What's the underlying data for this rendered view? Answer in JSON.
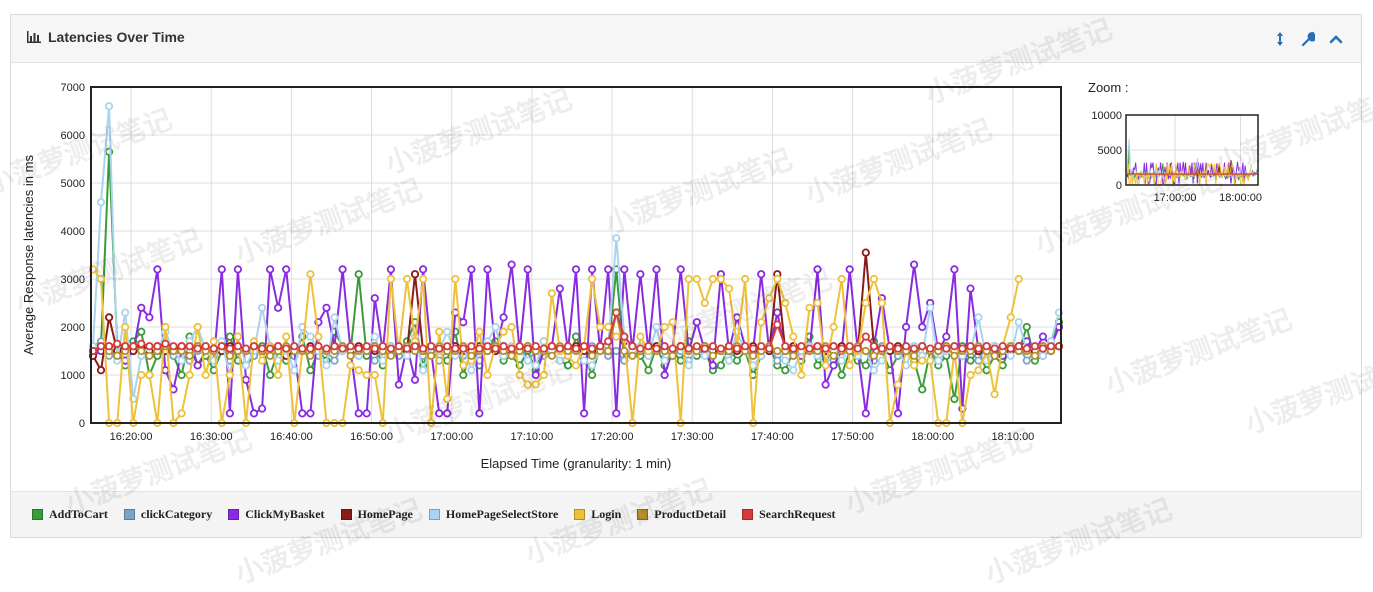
{
  "panel": {
    "title": "Latencies Over Time",
    "icons": [
      "bar-chart-icon",
      "resize-vertical-icon",
      "wrench-icon",
      "chevron-up-icon"
    ]
  },
  "zoom": {
    "label": "Zoom :"
  },
  "colors": {
    "AddToCart": "#3a9b3a",
    "clickCategory": "#7ba4c8",
    "ClickMyBasket": "#8a2be2",
    "HomePage": "#8b1a1a",
    "HomePageSelectStore": "#a8d4f0",
    "Login": "#efc13a",
    "ProductDetail": "#b8902a",
    "SearchRequest": "#d63b3b"
  },
  "watermark": "小菠萝测试笔记",
  "chart_data": [
    {
      "type": "line",
      "xlabel": "Elapsed Time (granularity: 1 min)",
      "ylabel": "Average Response latencies in ms",
      "ylim": [
        0,
        7000
      ],
      "yticks": [
        0,
        1000,
        2000,
        3000,
        4000,
        5000,
        6000,
        7000
      ],
      "xlim": [
        "16:15:00",
        "18:16:00"
      ],
      "xticks": [
        "16:20:00",
        "16:30:00",
        "16:40:00",
        "16:50:00",
        "17:00:00",
        "17:10:00",
        "17:20:00",
        "17:30:00",
        "17:40:00",
        "17:50:00",
        "18:00:00",
        "18:10:00"
      ],
      "grid": true,
      "legend": "bottom",
      "series": [
        {
          "name": "AddToCart",
          "values": [
            1500,
            1600,
            5650,
            1600,
            1200,
            1700,
            1900,
            1000,
            1400,
            1500,
            1400,
            1000,
            1800,
            1200,
            1400,
            1100,
            1500,
            1800,
            1300,
            1200,
            1400,
            1600,
            1000,
            1500,
            1300,
            1400,
            1800,
            1100,
            1500,
            1300,
            1900,
            1600,
            1500,
            3100,
            1400,
            1600,
            1200,
            1500,
            1400,
            1700,
            2100,
            1200,
            1600,
            1400,
            1300,
            1900,
            1000,
            1500,
            1200,
            1600,
            1700,
            1300,
            1400,
            1200,
            1500,
            1100,
            1700,
            1500,
            1300,
            1200,
            1800,
            1400,
            1000,
            1600,
            1500,
            3200,
            1300,
            1500,
            1400,
            1100,
            1600,
            1200,
            1500,
            1300,
            1700,
            1400,
            1500,
            1100,
            1200,
            1600,
            1300,
            1500,
            1000,
            1400,
            1600,
            1200,
            1100,
            1500,
            1300,
            1800,
            1200,
            1400,
            1600,
            1000,
            1500,
            1300,
            1200,
            1700,
            1500,
            1100,
            1400,
            1600,
            1300,
            700,
            1500,
            1200,
            1400,
            500,
            1600,
            1300,
            1500,
            1100,
            1400,
            1200,
            1600,
            1500,
            2000,
            1300,
            1400,
            1700,
            2100
          ]
        },
        {
          "name": "clickCategory",
          "values": [
            1600,
            1700,
            1400,
            1500,
            1300,
            1600,
            1500,
            1400,
            1500,
            1600,
            1400,
            1500,
            1300,
            1500,
            1600,
            1400,
            1500,
            1300,
            1600,
            1500,
            1400,
            1500,
            1600,
            1300,
            1500,
            1400,
            1500,
            1600,
            1400,
            1500,
            1300,
            1600,
            1500,
            1400,
            1500,
            1300,
            1600,
            1500,
            1400,
            1500,
            1600,
            1400,
            1500,
            1300,
            1500,
            1600,
            1400,
            1500,
            1300,
            1600,
            1500,
            1400,
            1500,
            1600,
            1300,
            1500,
            1400,
            1500,
            1600,
            1400,
            1500,
            1300,
            1600,
            1500,
            1400,
            1500,
            1300,
            1600,
            1500,
            1400,
            1500,
            1600,
            1400,
            1500,
            1300,
            1500,
            1600,
            1400,
            1500,
            1300,
            1600,
            1500,
            1400,
            1500,
            1600,
            1300,
            1500,
            1400,
            1500,
            1600,
            1400,
            1500,
            1300,
            1600,
            1500,
            1400,
            1500,
            1300,
            1600,
            1500,
            1400,
            1500,
            1600,
            1400,
            1500,
            1300,
            1500,
            1600,
            1400,
            1500,
            1300,
            1600,
            1500,
            1400,
            1500,
            1600,
            1300,
            1500,
            1400,
            1500,
            1600
          ]
        },
        {
          "name": "ClickMyBasket",
          "values": [
            1400,
            1500,
            1600,
            1400,
            1300,
            1500,
            2400,
            2200,
            3200,
            1100,
            700,
            1500,
            1600,
            1200,
            1500,
            1300,
            3200,
            200,
            3200,
            900,
            200,
            300,
            3200,
            2400,
            3200,
            1500,
            200,
            200,
            2100,
            2400,
            1600,
            3200,
            1500,
            200,
            200,
            2600,
            1500,
            3200,
            800,
            1600,
            900,
            3200,
            1500,
            200,
            200,
            2300,
            2100,
            3200,
            200,
            3200,
            1500,
            2200,
            3300,
            1500,
            3200,
            1000,
            1500,
            1600,
            2800,
            1500,
            3200,
            200,
            3200,
            1500,
            3200,
            200,
            3200,
            1500,
            3100,
            1500,
            3200,
            1000,
            1500,
            3200,
            1500,
            2100,
            1500,
            1200,
            3100,
            1500,
            2200,
            1600,
            1500,
            3100,
            1500,
            2300,
            1500,
            1600,
            1400,
            1500,
            3200,
            800,
            1200,
            1500,
            3200,
            1500,
            200,
            1600,
            2600,
            1500,
            200,
            2000,
            3300,
            2000,
            2500,
            1500,
            1800,
            3200,
            300,
            2800,
            1500,
            1600,
            1500,
            1400,
            1500,
            1600,
            1700,
            1500,
            1800,
            1600,
            2000
          ]
        },
        {
          "name": "HomePage",
          "values": [
            1400,
            1100,
            2200,
            1500,
            1600,
            1500,
            1600,
            1500,
            1600,
            1500,
            1500,
            1600,
            1500,
            1600,
            1500,
            1500,
            1500,
            1600,
            1500,
            1500,
            1600,
            1500,
            1500,
            1600,
            1400,
            1500,
            1500,
            1600,
            1500,
            1500,
            1600,
            1500,
            1500,
            1600,
            1500,
            1500,
            1500,
            1600,
            1500,
            1500,
            3100,
            1500,
            1600,
            1500,
            1500,
            1600,
            1500,
            1500,
            1600,
            1500,
            1500,
            1600,
            1500,
            1500,
            1600,
            1500,
            1500,
            1600,
            1500,
            1500,
            1600,
            1500,
            1500,
            1600,
            1500,
            2300,
            1700,
            1600,
            1500,
            1500,
            1600,
            1500,
            1500,
            1600,
            1500,
            1500,
            1600,
            1500,
            1500,
            1600,
            1500,
            1500,
            1600,
            1500,
            1500,
            3100,
            1500,
            1600,
            1500,
            1500,
            1600,
            1500,
            1500,
            1600,
            1500,
            1500,
            3550,
            1600,
            1500,
            1500,
            1600,
            1500,
            1500,
            1600,
            1500,
            1500,
            1600,
            1500,
            1500,
            1600,
            1500,
            1500,
            1600,
            1500,
            1500,
            1600,
            1500,
            1500,
            1600,
            1500,
            1600
          ]
        },
        {
          "name": "HomePageSelectStore",
          "values": [
            1600,
            4600,
            6600,
            1300,
            2300,
            500,
            1400,
            1600,
            1500,
            1900,
            1500,
            1300,
            1700,
            2000,
            1500,
            1300,
            1700,
            1000,
            1800,
            1200,
            1500,
            2400,
            1600,
            1300,
            1500,
            1100,
            2000,
            1800,
            1500,
            1200,
            2200,
            1500,
            1600,
            1400,
            1500,
            1800,
            1300,
            1600,
            1500,
            1400,
            1800,
            1100,
            1600,
            1500,
            1900,
            1400,
            1600,
            1100,
            1500,
            1700,
            2000,
            1400,
            1600,
            1500,
            1300,
            1200,
            1700,
            1500,
            1300,
            1400,
            1500,
            1300,
            1200,
            1500,
            1600,
            3850,
            1800,
            1500,
            1600,
            1400,
            2000,
            1300,
            1500,
            1600,
            1200,
            1500,
            1400,
            1600,
            1500,
            1300,
            1900,
            1500,
            1200,
            1400,
            1600,
            1500,
            1300,
            1100,
            1500,
            1600,
            1400,
            1200,
            1500,
            1300,
            1600,
            1400,
            1500,
            1100,
            1300,
            1600,
            1500,
            1200,
            1600,
            1400,
            2400,
            1300,
            1500,
            1600,
            1400,
            1500,
            2200,
            1300,
            1600,
            1500,
            1400,
            2100,
            1500,
            1600,
            1400,
            1700,
            2300
          ]
        },
        {
          "name": "Login",
          "values": [
            3200,
            3000,
            0,
            0,
            2000,
            0,
            1000,
            1000,
            0,
            2000,
            0,
            200,
            1000,
            2000,
            1000,
            1700,
            0,
            1000,
            1800,
            0,
            1700,
            1300,
            1600,
            1000,
            1800,
            0,
            1500,
            3100,
            1800,
            0,
            0,
            0,
            1200,
            1100,
            1000,
            1000,
            0,
            3000,
            1500,
            3000,
            1700,
            3000,
            0,
            1900,
            500,
            3000,
            1200,
            1300,
            1900,
            1000,
            1600,
            1900,
            2000,
            1000,
            800,
            800,
            1000,
            2700,
            1500,
            1400,
            1200,
            1600,
            3000,
            2000,
            2000,
            1800,
            1800,
            0,
            1800,
            1500,
            1500,
            2000,
            2100,
            0,
            3000,
            3000,
            2500,
            3000,
            3000,
            2800,
            1600,
            3000,
            0,
            2100,
            2600,
            3000,
            2500,
            1800,
            1000,
            2400,
            2500,
            1200,
            2000,
            3000,
            1200,
            1500,
            2500,
            3000,
            2500,
            0,
            800,
            1500,
            1200,
            1300,
            1300,
            0,
            0,
            1500,
            0,
            1000,
            1100,
            1500,
            600,
            1600,
            2200,
            3000
          ]
        },
        {
          "name": "ProductDetail",
          "values": [
            1500,
            1600,
            1500,
            1400,
            1500,
            1600,
            1500,
            1400,
            1500,
            1600,
            1500,
            1500,
            1400,
            1600,
            1500,
            1500,
            1600,
            1400,
            1500,
            1500,
            1600,
            1500,
            1400,
            1500,
            1600,
            1500,
            1500,
            1400,
            1600,
            1500,
            1500,
            1600,
            1400,
            1500,
            1500,
            1600,
            1500,
            1400,
            1500,
            1600,
            1500,
            1500,
            1400,
            1600,
            1500,
            1500,
            1600,
            1400,
            1500,
            1500,
            1600,
            1500,
            1400,
            1500,
            1600,
            1500,
            1500,
            1400,
            1600,
            1500,
            1500,
            1600,
            1400,
            1500,
            1500,
            2300,
            1500,
            1400,
            1500,
            1600,
            1500,
            1500,
            1400,
            1600,
            1500,
            1500,
            1600,
            1400,
            1500,
            1500,
            1600,
            1500,
            1400,
            1500,
            1600,
            1500,
            1500,
            1400,
            1600,
            1500,
            1500,
            1600,
            1400,
            1500,
            1500,
            1600,
            1500,
            1400,
            1500,
            1600,
            1500,
            1500,
            1400,
            1600,
            1500,
            1500,
            1600,
            1400,
            1500,
            1500,
            1600,
            1500,
            1400,
            1500,
            1600,
            1500,
            1500,
            1400,
            1600,
            1500,
            1600
          ]
        },
        {
          "name": "SearchRequest",
          "values": [
            1500,
            1600,
            1600,
            1650,
            1600,
            1600,
            1650,
            1600,
            1600,
            1650,
            1600,
            1600,
            1600,
            1550,
            1600,
            1550,
            1600,
            1550,
            1600,
            1550,
            1600,
            1550,
            1550,
            1600,
            1550,
            1600,
            1550,
            1550,
            1600,
            1550,
            1600,
            1550,
            1600,
            1550,
            1600,
            1550,
            1600,
            1550,
            1600,
            1550,
            1600,
            1550,
            1600,
            1550,
            1600,
            1550,
            1550,
            1600,
            1550,
            1600,
            1550,
            1600,
            1550,
            1600,
            1550,
            1600,
            1550,
            1600,
            1550,
            1600,
            1550,
            1600,
            1550,
            1600,
            1700,
            2300,
            1800,
            1600,
            1550,
            1600,
            1550,
            1600,
            1550,
            1600,
            1550,
            1600,
            1550,
            1600,
            1550,
            1600,
            1550,
            1600,
            1550,
            1600,
            1550,
            2050,
            1600,
            1550,
            1600,
            1550,
            1600,
            1550,
            1600,
            1550,
            1600,
            1550,
            1800,
            1600,
            1550,
            1600,
            1550,
            1600,
            1550,
            1600,
            1550,
            1600,
            1550,
            1600,
            1550,
            1600,
            1550,
            1600,
            1550,
            1600,
            1550,
            1600,
            1550,
            1600,
            1550,
            1600,
            1600
          ]
        }
      ]
    },
    {
      "type": "line",
      "title": "Zoom :",
      "ylim": [
        0,
        10000
      ],
      "yticks": [
        0,
        5000,
        10000
      ],
      "xticks": [
        "17:00:00",
        "18:00:00"
      ],
      "grid": true
    }
  ]
}
